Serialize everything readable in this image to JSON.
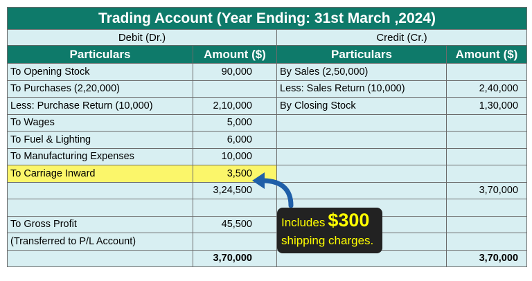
{
  "title": "Trading Account (Year Ending: 31st March ,2024)",
  "sections": {
    "debit": "Debit (Dr.)",
    "credit": "Credit (Cr.)"
  },
  "headers": {
    "particulars_left": "Particulars",
    "amount_left": "Amount ($)",
    "particulars_right": "Particulars",
    "amount_right": "Amount ($)"
  },
  "rows": [
    {
      "dp": "To Opening Stock",
      "da": "90,000",
      "cp": "By Sales (2,50,000)",
      "ca": ""
    },
    {
      "dp": "To Purchases (2,20,000)",
      "da": "",
      "cp": "Less: Sales Return (10,000)",
      "ca": "2,40,000"
    },
    {
      "dp": "Less: Purchase Return (10,000)",
      "da": "2,10,000",
      "cp": "By Closing Stock",
      "ca": "1,30,000"
    },
    {
      "dp": "To Wages",
      "da": "5,000",
      "cp": "",
      "ca": ""
    },
    {
      "dp": "To Fuel & Lighting",
      "da": "6,000",
      "cp": "",
      "ca": ""
    },
    {
      "dp": "To Manufacturing Expenses",
      "da": "10,000",
      "cp": "",
      "ca": ""
    },
    {
      "dp": "To Carriage Inward",
      "da": "3,500",
      "cp": "",
      "ca": ""
    },
    {
      "dp": "",
      "da": "3,24,500",
      "cp": "",
      "ca": "3,70,000"
    },
    {
      "dp": "",
      "da": "",
      "cp": "",
      "ca": ""
    },
    {
      "dp": "To Gross Profit",
      "da": "45,500",
      "cp": "",
      "ca": ""
    },
    {
      "dp": "(Transferred to P/L Account)",
      "da": "",
      "cp": "",
      "ca": ""
    },
    {
      "dp": "",
      "da": "3,70,000",
      "cp": "",
      "ca": "3,70,000"
    }
  ],
  "callout": {
    "prefix": "Includes",
    "amount": "$300",
    "suffix": "shipping charges."
  },
  "colors": {
    "header_bg": "#0e7a6a",
    "row_bg": "#d8eff2",
    "highlight": "#fbf66a",
    "callout_bg": "#222222",
    "callout_text": "#ffff00",
    "arrow": "#1f5fa8"
  }
}
